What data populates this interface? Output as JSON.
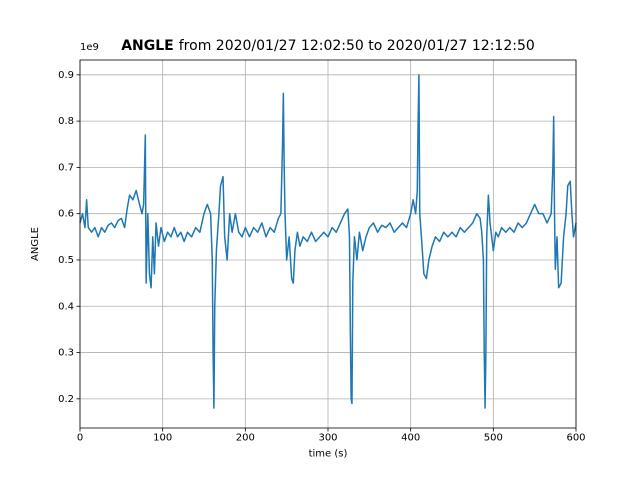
{
  "chart_data": {
    "type": "line",
    "title": {
      "bold": "ANGLE",
      "rest": "from 2020/01/27 12:02:50 to 2020/01/27 12:12:50"
    },
    "offset_text": "1e9",
    "xlabel": "time (s)",
    "ylabel": "ANGLE",
    "color": "#1f77b4",
    "grid": true,
    "xlim": [
      0,
      600
    ],
    "xticks": [
      0,
      100,
      200,
      300,
      400,
      500,
      600
    ],
    "ylim": [
      0.137,
      0.932
    ],
    "yticks": [
      0.2,
      0.3,
      0.4,
      0.5,
      0.6,
      0.7,
      0.8,
      0.9
    ],
    "x": [
      0,
      3,
      6,
      8,
      10,
      14,
      18,
      22,
      26,
      30,
      34,
      38,
      42,
      46,
      50,
      54,
      57,
      60,
      64,
      68,
      72,
      75,
      77,
      79,
      80,
      82,
      84,
      86,
      88,
      90,
      92,
      95,
      98,
      102,
      106,
      110,
      114,
      118,
      122,
      126,
      130,
      135,
      140,
      145,
      150,
      154,
      158,
      160,
      161,
      162,
      163,
      165,
      168,
      170,
      173,
      175,
      178,
      181,
      184,
      188,
      192,
      196,
      200,
      205,
      210,
      215,
      220,
      225,
      230,
      235,
      240,
      243,
      245,
      246,
      247,
      248,
      250,
      253,
      256,
      258,
      260,
      263,
      266,
      270,
      275,
      280,
      285,
      290,
      295,
      300,
      305,
      310,
      315,
      320,
      324,
      326,
      327,
      328,
      329,
      330,
      332,
      335,
      338,
      342,
      346,
      350,
      355,
      360,
      365,
      370,
      375,
      380,
      385,
      390,
      395,
      400,
      403,
      406,
      408,
      409,
      410,
      411,
      413,
      416,
      419,
      422,
      426,
      430,
      435,
      440,
      445,
      450,
      455,
      460,
      465,
      470,
      475,
      480,
      484,
      486,
      488,
      489,
      490,
      491,
      492,
      494,
      496,
      498,
      500,
      503,
      506,
      510,
      515,
      520,
      525,
      530,
      535,
      540,
      545,
      550,
      555,
      560,
      565,
      570,
      572,
      573,
      574,
      575,
      577,
      579,
      582,
      585,
      588,
      590,
      593,
      595,
      597,
      600
    ],
    "values": [
      0.58,
      0.6,
      0.57,
      0.63,
      0.57,
      0.56,
      0.57,
      0.55,
      0.57,
      0.56,
      0.575,
      0.58,
      0.57,
      0.585,
      0.59,
      0.57,
      0.61,
      0.64,
      0.63,
      0.65,
      0.62,
      0.6,
      0.62,
      0.77,
      0.45,
      0.6,
      0.47,
      0.44,
      0.55,
      0.47,
      0.58,
      0.53,
      0.57,
      0.54,
      0.56,
      0.55,
      0.57,
      0.55,
      0.56,
      0.54,
      0.56,
      0.55,
      0.57,
      0.56,
      0.6,
      0.62,
      0.6,
      0.5,
      0.3,
      0.18,
      0.4,
      0.52,
      0.6,
      0.66,
      0.68,
      0.55,
      0.5,
      0.6,
      0.56,
      0.6,
      0.56,
      0.55,
      0.57,
      0.55,
      0.57,
      0.56,
      0.58,
      0.55,
      0.57,
      0.56,
      0.59,
      0.6,
      0.75,
      0.86,
      0.7,
      0.6,
      0.5,
      0.55,
      0.46,
      0.45,
      0.52,
      0.56,
      0.53,
      0.55,
      0.54,
      0.56,
      0.54,
      0.55,
      0.56,
      0.55,
      0.57,
      0.56,
      0.58,
      0.6,
      0.61,
      0.55,
      0.35,
      0.2,
      0.19,
      0.45,
      0.55,
      0.5,
      0.56,
      0.52,
      0.55,
      0.57,
      0.58,
      0.56,
      0.575,
      0.57,
      0.58,
      0.56,
      0.57,
      0.58,
      0.57,
      0.6,
      0.63,
      0.6,
      0.65,
      0.8,
      0.9,
      0.6,
      0.55,
      0.47,
      0.46,
      0.5,
      0.53,
      0.55,
      0.54,
      0.56,
      0.55,
      0.56,
      0.55,
      0.57,
      0.56,
      0.57,
      0.58,
      0.6,
      0.59,
      0.56,
      0.5,
      0.3,
      0.18,
      0.3,
      0.55,
      0.64,
      0.58,
      0.55,
      0.52,
      0.56,
      0.55,
      0.57,
      0.56,
      0.57,
      0.56,
      0.58,
      0.57,
      0.58,
      0.6,
      0.62,
      0.6,
      0.6,
      0.58,
      0.6,
      0.7,
      0.81,
      0.6,
      0.48,
      0.55,
      0.44,
      0.45,
      0.55,
      0.6,
      0.66,
      0.67,
      0.6,
      0.55,
      0.58
    ]
  }
}
